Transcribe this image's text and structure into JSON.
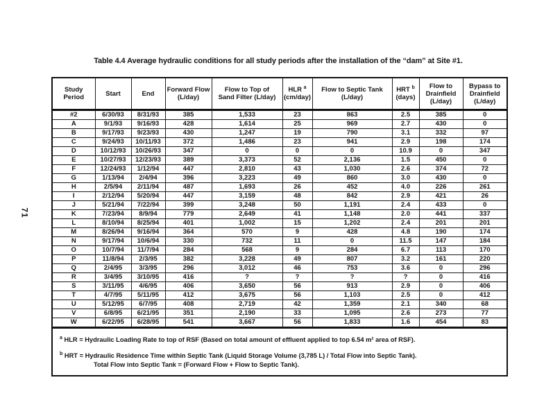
{
  "page": {
    "number": "71"
  },
  "title": "Table 4.4  Average hydraulic conditions for all study periods after the installation of the “dam” at Site #1.",
  "table": {
    "columns": [
      {
        "id": "study-period",
        "lines": [
          "Study",
          "Period"
        ]
      },
      {
        "id": "start",
        "lines": [
          "Start"
        ]
      },
      {
        "id": "end",
        "lines": [
          "End"
        ]
      },
      {
        "id": "forward-flow",
        "lines": [
          "Forward Flow",
          "(L/day)"
        ]
      },
      {
        "id": "flow-to-sand-filter",
        "lines": [
          "Flow to Top of",
          "Sand Filter (L/day)"
        ]
      },
      {
        "id": "hlr",
        "lines": [
          "HLR",
          "(cm/day)"
        ],
        "sup": "a"
      },
      {
        "id": "flow-to-septic-tank",
        "lines": [
          "Flow to Septic Tank",
          "(L/day)"
        ]
      },
      {
        "id": "hrt",
        "lines": [
          "HRT",
          "(days)"
        ],
        "sup": "b"
      },
      {
        "id": "flow-to-drainfield",
        "lines": [
          "Flow to",
          "Drainfield",
          "(L/day)"
        ]
      },
      {
        "id": "bypass-to-drainfield",
        "lines": [
          "Bypass to",
          "Drainfield",
          "(L/day)"
        ]
      }
    ],
    "rows": [
      [
        "#2",
        "6/30/93",
        "8/31/93",
        "385",
        "1,533",
        "23",
        "863",
        "2.5",
        "385",
        "0"
      ],
      [
        "A",
        "9/1/93",
        "9/16/93",
        "428",
        "1,614",
        "25",
        "969",
        "2.7",
        "430",
        "0"
      ],
      [
        "B",
        "9/17/93",
        "9/23/93",
        "430",
        "1,247",
        "19",
        "790",
        "3.1",
        "332",
        "97"
      ],
      [
        "C",
        "9/24/93",
        "10/11/93",
        "372",
        "1,486",
        "23",
        "941",
        "2.9",
        "198",
        "174"
      ],
      [
        "D",
        "10/12/93",
        "10/26/93",
        "347",
        "0",
        "0",
        "0",
        "10.9",
        "0",
        "347"
      ],
      [
        "E",
        "10/27/93",
        "12/23/93",
        "389",
        "3,373",
        "52",
        "2,136",
        "1.5",
        "450",
        "0"
      ],
      [
        "F",
        "12/24/93",
        "1/12/94",
        "447",
        "2,810",
        "43",
        "1,030",
        "2.6",
        "374",
        "72"
      ],
      [
        "G",
        "1/13/94",
        "2/4/94",
        "396",
        "3,223",
        "49",
        "860",
        "3.0",
        "430",
        "0"
      ],
      [
        "H",
        "2/5/94",
        "2/11/94",
        "487",
        "1,693",
        "26",
        "452",
        "4.0",
        "226",
        "261"
      ],
      [
        "I",
        "2/12/94",
        "5/20/94",
        "447",
        "3,159",
        "48",
        "842",
        "2.9",
        "421",
        "26"
      ],
      [
        "J",
        "5/21/94",
        "7/22/94",
        "399",
        "3,248",
        "50",
        "1,191",
        "2.4",
        "433",
        "0"
      ],
      [
        "K",
        "7/23/94",
        "8/9/94",
        "779",
        "2,649",
        "41",
        "1,148",
        "2.0",
        "441",
        "337"
      ],
      [
        "L",
        "8/10/94",
        "8/25/94",
        "401",
        "1,002",
        "15",
        "1,202",
        "2.4",
        "201",
        "201"
      ],
      [
        "M",
        "8/26/94",
        "9/16/94",
        "364",
        "570",
        "9",
        "428",
        "4.8",
        "190",
        "174"
      ],
      [
        "N",
        "9/17/94",
        "10/6/94",
        "330",
        "732",
        "11",
        "0",
        "11.5",
        "147",
        "184"
      ],
      [
        "O",
        "10/7/94",
        "11/7/94",
        "284",
        "568",
        "9",
        "284",
        "6.7",
        "113",
        "170"
      ],
      [
        "P",
        "11/8/94",
        "2/3/95",
        "382",
        "3,228",
        "49",
        "807",
        "3.2",
        "161",
        "220"
      ],
      [
        "Q",
        "2/4/95",
        "3/3/95",
        "296",
        "3,012",
        "46",
        "753",
        "3.6",
        "0",
        "296"
      ],
      [
        "R",
        "3/4/95",
        "3/10/95",
        "416",
        "?",
        "?",
        "?",
        "?",
        "0",
        "416"
      ],
      [
        "S",
        "3/11/95",
        "4/6/95",
        "406",
        "3,650",
        "56",
        "913",
        "2.9",
        "0",
        "406"
      ],
      [
        "T",
        "4/7/95",
        "5/11/95",
        "412",
        "3,675",
        "56",
        "1,103",
        "2.5",
        "0",
        "412"
      ],
      [
        "U",
        "5/12/95",
        "6/7/95",
        "408",
        "2,719",
        "42",
        "1,359",
        "2.1",
        "340",
        "68"
      ],
      [
        "V",
        "6/8/95",
        "6/21/95",
        "351",
        "2,190",
        "33",
        "1,095",
        "2.6",
        "273",
        "77"
      ],
      [
        "W",
        "6/22/95",
        "6/28/95",
        "541",
        "3,667",
        "56",
        "1,833",
        "1.6",
        "454",
        "83"
      ]
    ]
  },
  "footnotes": [
    {
      "sup": "a",
      "text": "HLR  =  Hydraulic Loading Rate to top of RSF (Based on total amount of effluent applied to top 6.54 m² area of RSF)."
    },
    {
      "sup": "b",
      "text": "HRT  =  Hydraulic Residence Time within Septic Tank (Liquid Storage Volume (3,785 L) / Total Flow into Septic Tank).",
      "cont": "Total Flow into Septic Tank  =  (Forward Flow  +  Flow to Septic Tank)."
    }
  ]
}
